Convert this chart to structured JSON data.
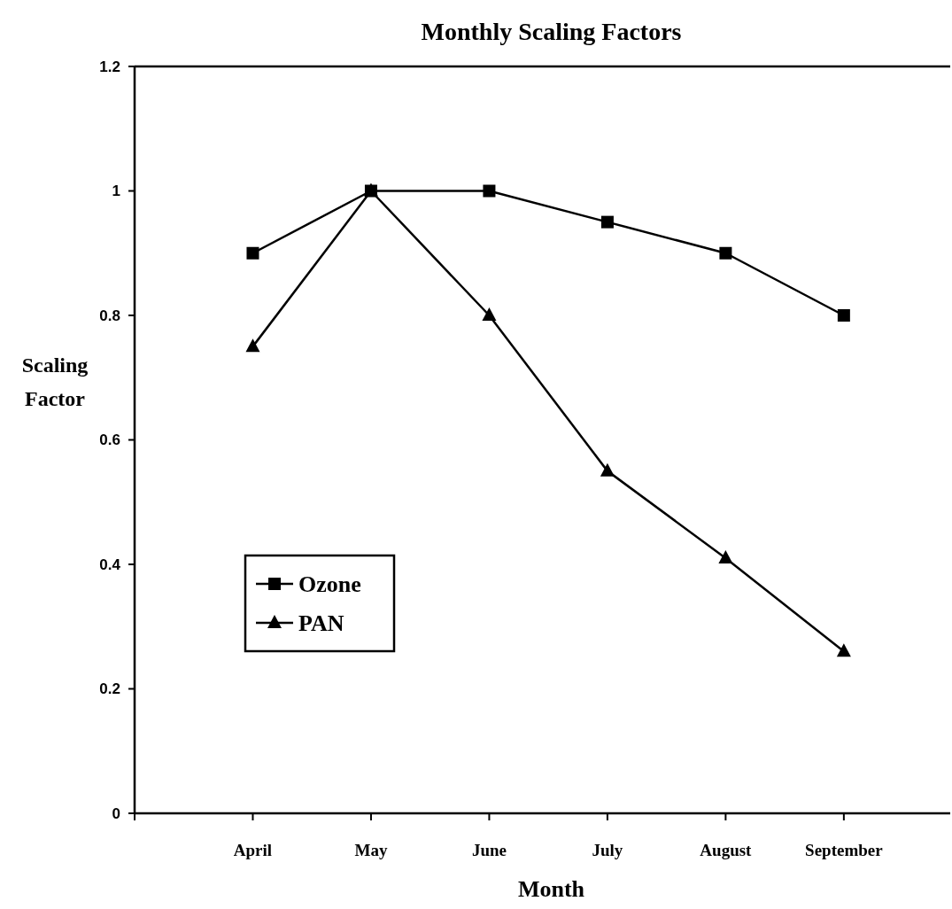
{
  "chart_data": {
    "type": "line",
    "title": "Monthly Scaling Factors",
    "xlabel": "Month",
    "ylabel": "Scaling Factor",
    "categories": [
      "April",
      "May",
      "June",
      "July",
      "August",
      "September"
    ],
    "series": [
      {
        "name": "Ozone",
        "color": "#000000",
        "marker": "square",
        "values": [
          0.9,
          1,
          1,
          0.95,
          0.9,
          0.8
        ]
      },
      {
        "name": "PAN",
        "color": "#000000",
        "marker": "triangle",
        "values": [
          0.75,
          1,
          0.8,
          0.55,
          0.41,
          0.26
        ]
      }
    ],
    "ylim": [
      0,
      1.2
    ],
    "yticks": [
      {
        "value": 0,
        "label": "0"
      },
      {
        "value": 0.2,
        "label": "0.2"
      },
      {
        "value": 0.4,
        "label": "0.4"
      },
      {
        "value": 0.6,
        "label": "0.6"
      },
      {
        "value": 0.8,
        "label": "0.8"
      },
      {
        "value": 1,
        "label": "1"
      },
      {
        "value": 1.2,
        "label": "1.2"
      }
    ],
    "grid": false,
    "legend": "bottom left",
    "line_style": "solid"
  }
}
